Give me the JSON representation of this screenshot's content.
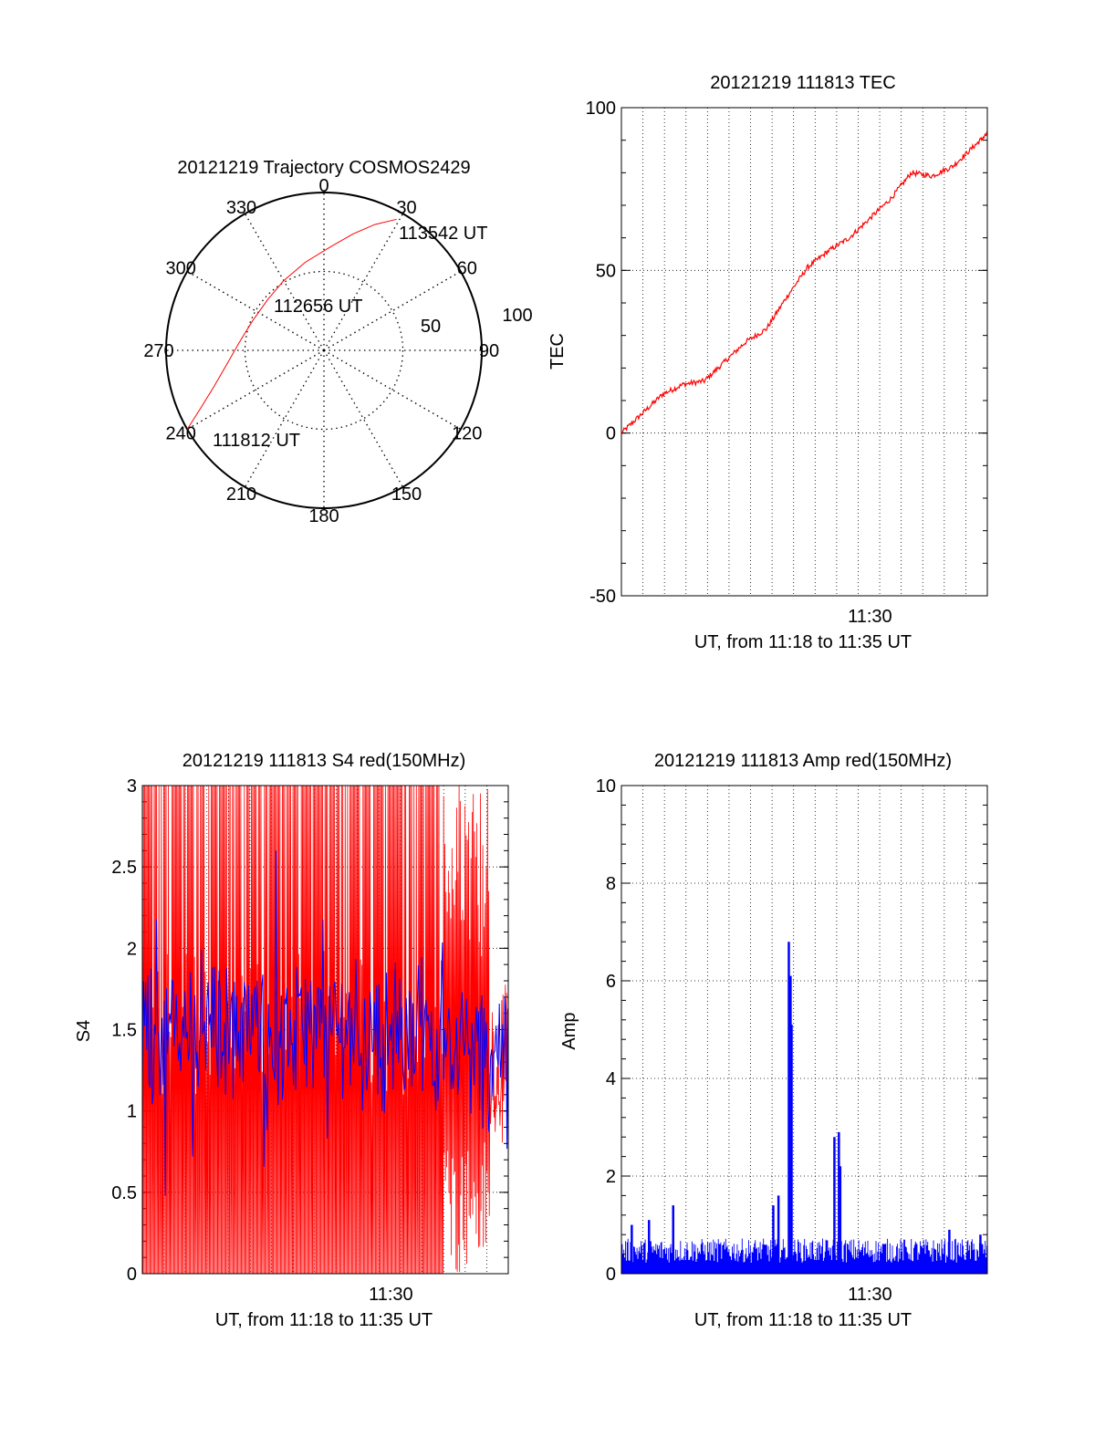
{
  "chart_data": [
    {
      "id": "trajectory",
      "type": "polar",
      "title": "20121219 Trajectory COSMOS2429",
      "azimuth_labels": [
        "0",
        "30",
        "60",
        "90",
        "120",
        "150",
        "180",
        "210",
        "240",
        "270",
        "300",
        "330"
      ],
      "elevation_rings": [
        0,
        50,
        100
      ],
      "radius_labels": [
        "50",
        "100"
      ],
      "trajectory": {
        "color": "#ff0000",
        "points": [
          [
            240,
            100
          ],
          [
            245,
            86
          ],
          [
            252,
            73
          ],
          [
            262,
            62
          ],
          [
            275,
            54
          ],
          [
            292,
            49
          ],
          [
            312,
            48
          ],
          [
            330,
            51
          ],
          [
            348,
            57
          ],
          [
            4,
            66
          ],
          [
            14,
            76
          ],
          [
            22,
            86
          ],
          [
            29,
            95
          ]
        ]
      },
      "annotations": [
        "111812 UT",
        "112656 UT",
        "113542 UT"
      ]
    },
    {
      "id": "tec",
      "type": "line",
      "title": "20121219 111813 TEC",
      "xlabel": "UT, from 11:18 to 11:35 UT",
      "ylabel": "TEC",
      "xlim": [
        0,
        1060
      ],
      "ylim": [
        -50,
        100
      ],
      "yticks": [
        "-50",
        "0",
        "50",
        "100"
      ],
      "xtick_label": "11:30",
      "xtick_value": 720,
      "series": [
        {
          "color": "#ff0000",
          "x": [
            0,
            60,
            120,
            180,
            240,
            300,
            360,
            420,
            480,
            540,
            600,
            660,
            720,
            780,
            840,
            900,
            960,
            1020,
            1060
          ],
          "y": [
            0,
            6,
            12,
            15,
            16,
            22,
            28,
            32,
            42,
            51,
            56,
            60,
            66,
            72,
            80,
            79,
            82,
            88,
            92
          ]
        }
      ]
    },
    {
      "id": "s4",
      "type": "line",
      "title": "20121219 111813 S4 red(150MHz)",
      "xlabel": "UT, from 11:18 to 11:35 UT",
      "ylabel": "S4",
      "xlim": [
        0,
        1060
      ],
      "ylim": [
        0,
        3
      ],
      "yticks": [
        "0",
        "0.5",
        "1",
        "1.5",
        "2",
        "2.5",
        "3"
      ],
      "xtick_label": "11:30",
      "xtick_value": 720,
      "series": [
        {
          "color": "#ff0000",
          "x": [
            0,
            1060
          ],
          "y": [
            1.6,
            1.1
          ]
        },
        {
          "color": "#0000ff",
          "x": [
            0,
            100,
            200,
            300,
            400,
            500,
            600,
            700,
            800,
            900,
            1000,
            1060
          ],
          "y": [
            1.45,
            1.5,
            1.55,
            1.5,
            1.45,
            1.5,
            1.5,
            1.45,
            1.5,
            1.4,
            1.35,
            1.4
          ]
        }
      ]
    },
    {
      "id": "amp",
      "type": "line",
      "title": "20121219 111813 Amp red(150MHz)",
      "xlabel": "UT, from 11:18 to 11:35 UT",
      "ylabel": "Amp",
      "xlim": [
        0,
        1060
      ],
      "ylim": [
        0,
        10
      ],
      "yticks": [
        "0",
        "2",
        "4",
        "6",
        "8",
        "10"
      ],
      "xtick_label": "11:30",
      "xtick_value": 720,
      "series": [
        {
          "color": "#0000ff",
          "baseline": 0.45,
          "spikes": [
            [
              485,
              6.8
            ],
            [
              490,
              6.1
            ],
            [
              493,
              5.1
            ],
            [
              617,
              2.8
            ],
            [
              630,
              2.9
            ],
            [
              634,
              2.2
            ],
            [
              150,
              1.4
            ],
            [
              440,
              1.4
            ],
            [
              455,
              1.6
            ],
            [
              30,
              1.0
            ],
            [
              80,
              1.1
            ],
            [
              950,
              0.9
            ],
            [
              1040,
              0.8
            ]
          ]
        }
      ]
    }
  ]
}
